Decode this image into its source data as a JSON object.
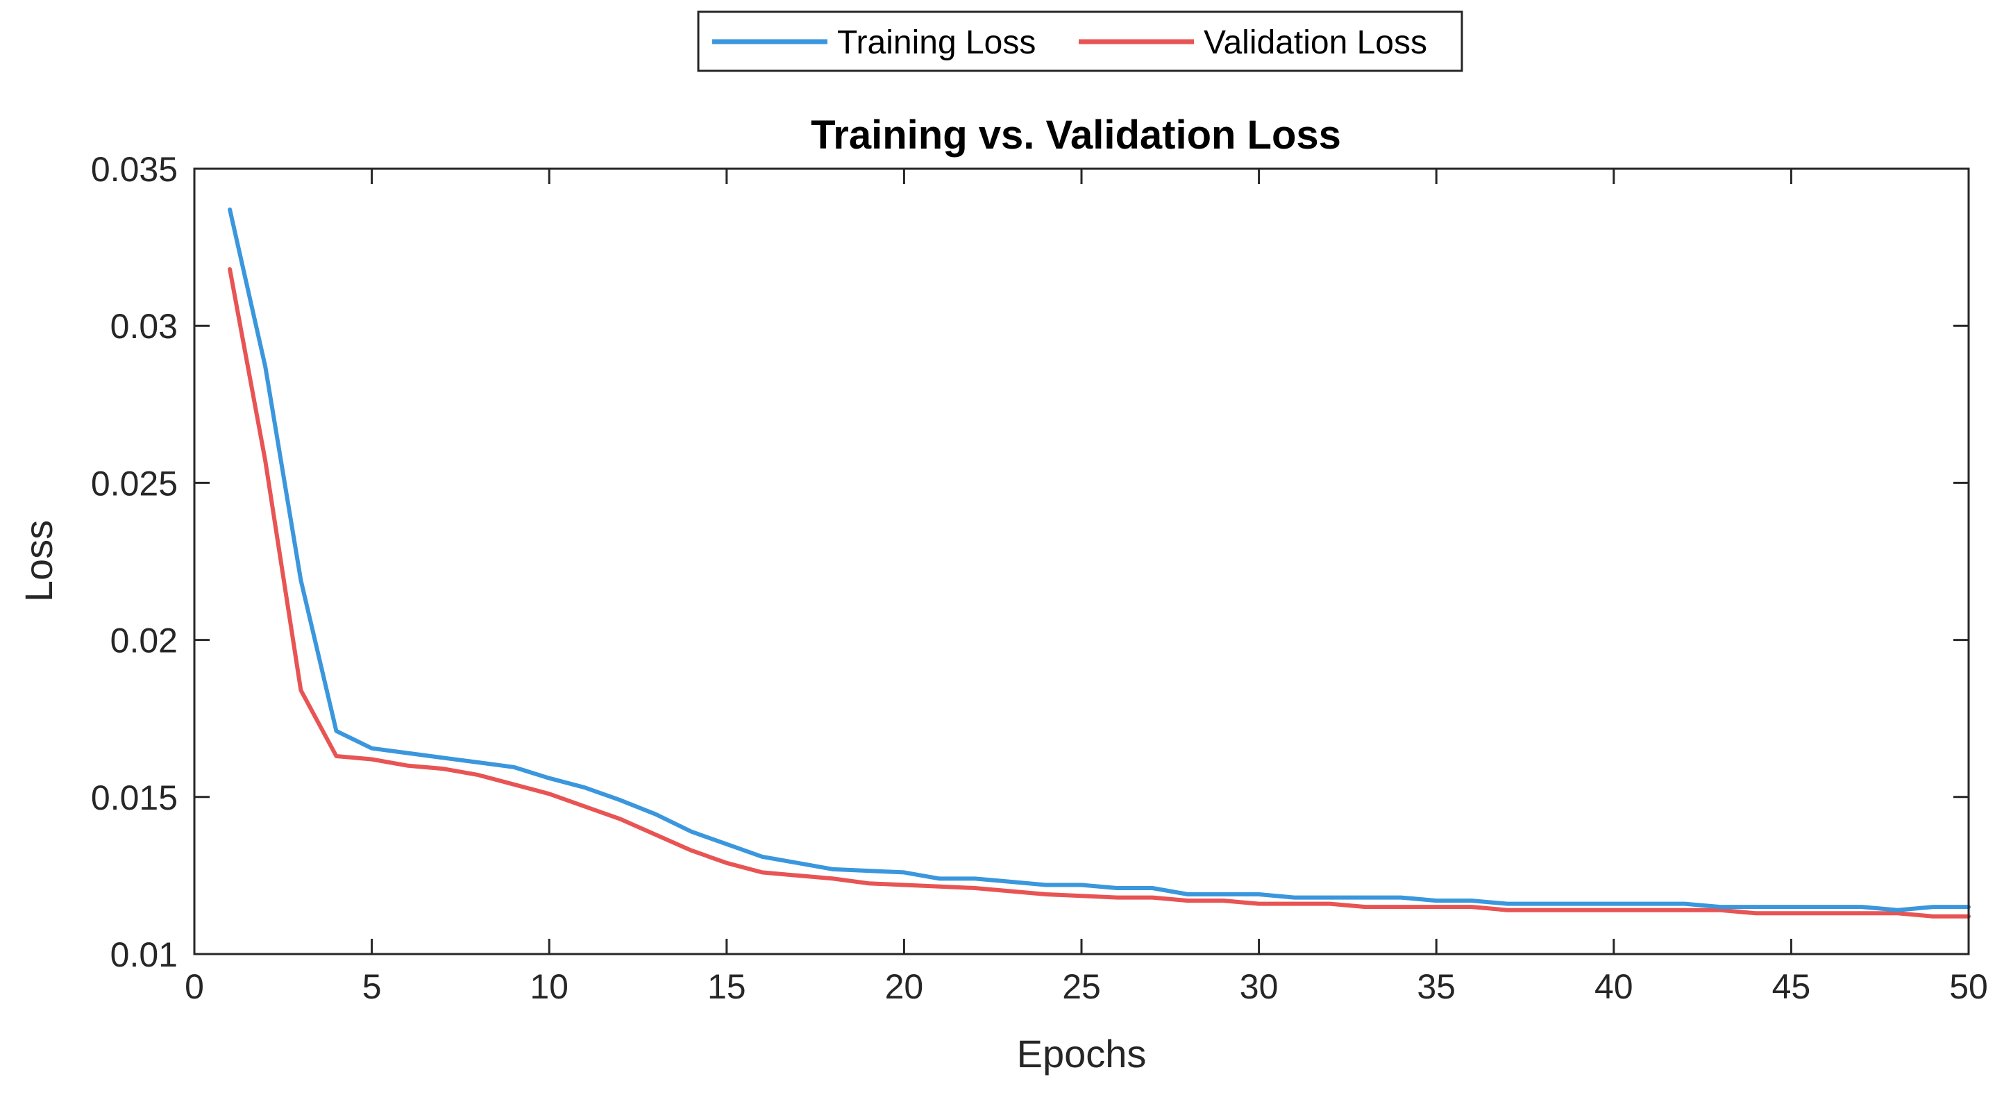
{
  "chart_data": {
    "type": "line",
    "title": "Training vs. Validation Loss",
    "xlabel": "Epochs",
    "ylabel": "Loss",
    "xlim": [
      0,
      50
    ],
    "ylim": [
      0.01,
      0.035
    ],
    "x_ticks": [
      0,
      5,
      10,
      15,
      20,
      25,
      30,
      35,
      40,
      45,
      50
    ],
    "x_tick_labels": [
      "0",
      "5",
      "10",
      "15",
      "20",
      "25",
      "30",
      "35",
      "40",
      "45",
      "50"
    ],
    "y_ticks": [
      0.01,
      0.015,
      0.02,
      0.025,
      0.03,
      0.035
    ],
    "y_tick_labels": [
      "0.01",
      "0.015",
      "0.02",
      "0.025",
      "0.03",
      "0.035"
    ],
    "grid": false,
    "legend_position": "top-center, outside",
    "x": [
      1,
      2,
      3,
      4,
      5,
      6,
      7,
      8,
      9,
      10,
      11,
      12,
      13,
      14,
      15,
      16,
      17,
      18,
      19,
      20,
      21,
      22,
      23,
      24,
      25,
      26,
      27,
      28,
      29,
      30,
      31,
      32,
      33,
      34,
      35,
      36,
      37,
      38,
      39,
      40,
      41,
      42,
      43,
      44,
      45,
      46,
      47,
      48,
      49,
      50
    ],
    "series": [
      {
        "name": "Training Loss",
        "color": "#3a97dd",
        "values": [
          0.0337,
          0.0287,
          0.0219,
          0.0171,
          0.01655,
          0.0164,
          0.01625,
          0.0161,
          0.01595,
          0.0156,
          0.0153,
          0.0149,
          0.01445,
          0.0139,
          0.0135,
          0.0131,
          0.0129,
          0.0127,
          0.01265,
          0.0126,
          0.0124,
          0.0124,
          0.0123,
          0.0122,
          0.0122,
          0.0121,
          0.0121,
          0.0119,
          0.0119,
          0.0119,
          0.0118,
          0.0118,
          0.0118,
          0.0118,
          0.0117,
          0.0117,
          0.0116,
          0.0116,
          0.0116,
          0.0116,
          0.0116,
          0.0116,
          0.0115,
          0.0115,
          0.0115,
          0.0115,
          0.0115,
          0.0114,
          0.0115,
          0.0115
        ]
      },
      {
        "name": "Validation Loss",
        "color": "#e85454",
        "values": [
          0.0318,
          0.0257,
          0.0184,
          0.0163,
          0.0162,
          0.016,
          0.0159,
          0.0157,
          0.0154,
          0.0151,
          0.0147,
          0.0143,
          0.0138,
          0.0133,
          0.0129,
          0.0126,
          0.0125,
          0.0124,
          0.01225,
          0.0122,
          0.01215,
          0.0121,
          0.012,
          0.0119,
          0.01185,
          0.0118,
          0.0118,
          0.0117,
          0.0117,
          0.0116,
          0.0116,
          0.0116,
          0.0115,
          0.0115,
          0.0115,
          0.0115,
          0.0114,
          0.0114,
          0.0114,
          0.0114,
          0.0114,
          0.0114,
          0.0114,
          0.0113,
          0.0113,
          0.0113,
          0.0113,
          0.0113,
          0.0112,
          0.0112
        ]
      }
    ]
  }
}
